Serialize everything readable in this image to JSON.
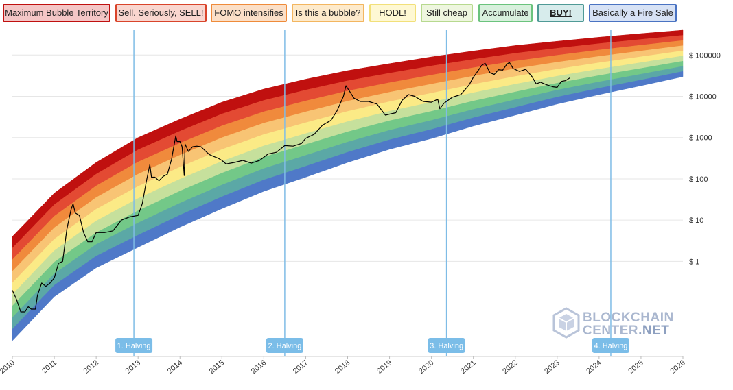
{
  "chart_data": {
    "type": "area",
    "title": "",
    "xlabel": "",
    "ylabel": "",
    "y_scale": "log",
    "xlim": [
      2010.0,
      2026.0
    ],
    "ylim": [
      0.005,
      400000
    ],
    "x_ticks": [
      2010,
      2011,
      2012,
      2013,
      2014,
      2015,
      2016,
      2017,
      2018,
      2019,
      2020,
      2021,
      2022,
      2023,
      2024,
      2025,
      2026
    ],
    "x_tick_labels": [
      "2010",
      "2011",
      "2012",
      "2013",
      "2014",
      "2015",
      "2016",
      "2017",
      "2018",
      "2019",
      "2020",
      "2021",
      "2022",
      "2023",
      "2024",
      "2025",
      "2026"
    ],
    "y_ticks": [
      1,
      10,
      100,
      1000,
      10000,
      100000
    ],
    "y_tick_labels": [
      "$ 1",
      "$ 10",
      "$ 100",
      "$ 1000",
      "$ 10000",
      "$ 100000"
    ],
    "grid": true,
    "legend_position": "top",
    "bands": [
      {
        "name": "Maximum Bubble Territory",
        "fill": "#c0100f",
        "border": "#c0100f",
        "bg": "#f4c6c6"
      },
      {
        "name": "Sell. Seriously, SELL!",
        "fill": "#e34a33",
        "border": "#d9442b",
        "bg": "#f9d6cf"
      },
      {
        "name": "FOMO intensifies",
        "fill": "#f08a3c",
        "border": "#ef8b3a",
        "bg": "#fbdfc7"
      },
      {
        "name": "Is this a bubble?",
        "fill": "#f8c474",
        "border": "#f3b660",
        "bg": "#fdeacb"
      },
      {
        "name": "HODL!",
        "fill": "#fbea86",
        "border": "#f2e07a",
        "bg": "#fef8d3"
      },
      {
        "name": "Still cheap",
        "fill": "#c6e09c",
        "border": "#b7d98f",
        "bg": "#eef6df"
      },
      {
        "name": "Accumulate",
        "fill": "#73c888",
        "border": "#6bc37d",
        "bg": "#d8f0dd"
      },
      {
        "name": "BUY!",
        "fill": "#5ba8a6",
        "border": "#4f9a96",
        "bg": "#d7ecec"
      },
      {
        "name": "Basically a Fire Sale",
        "fill": "#4f79c8",
        "border": "#4a73c2",
        "bg": "#d7e2f5"
      }
    ],
    "band_edges": {
      "x": [
        2010.0,
        2011.0,
        2012.0,
        2013.0,
        2014.0,
        2015.0,
        2016.0,
        2017.0,
        2018.0,
        2019.0,
        2020.0,
        2021.0,
        2022.0,
        2023.0,
        2024.0,
        2025.0,
        2026.0
      ],
      "bottom": [
        0.012,
        0.14,
        0.7,
        2.2,
        6.8,
        19,
        50,
        110,
        250,
        520,
        950,
        1900,
        3500,
        6500,
        11000,
        18000,
        30000
      ],
      "top": [
        4.0,
        45,
        250,
        1000,
        2800,
        7200,
        15000,
        26000,
        42000,
        62000,
        90000,
        125000,
        170000,
        215000,
        270000,
        330000,
        400000
      ]
    },
    "series": [
      {
        "name": "",
        "x": [
          2010.0,
          2010.1,
          2010.2,
          2010.3,
          2010.38,
          2010.45,
          2010.5,
          2010.55,
          2010.6,
          2010.7,
          2010.8,
          2010.9,
          2011.0,
          2011.1,
          2011.2,
          2011.3,
          2011.4,
          2011.45,
          2011.5,
          2011.6,
          2011.7,
          2011.8,
          2011.9,
          2012.0,
          2012.2,
          2012.4,
          2012.6,
          2012.8,
          2013.0,
          2013.1,
          2013.2,
          2013.28,
          2013.32,
          2013.4,
          2013.5,
          2013.6,
          2013.7,
          2013.8,
          2013.9,
          2013.93,
          2014.0,
          2014.05,
          2014.1,
          2014.12,
          2014.2,
          2014.3,
          2014.4,
          2014.5,
          2014.6,
          2014.7,
          2014.8,
          2014.9,
          2015.0,
          2015.1,
          2015.3,
          2015.5,
          2015.7,
          2015.9,
          2016.1,
          2016.3,
          2016.5,
          2016.7,
          2016.9,
          2017.0,
          2017.2,
          2017.4,
          2017.6,
          2017.75,
          2017.9,
          2017.96,
          2018.05,
          2018.15,
          2018.3,
          2018.5,
          2018.7,
          2018.9,
          2019.0,
          2019.15,
          2019.3,
          2019.45,
          2019.6,
          2019.8,
          2020.0,
          2020.15,
          2020.2,
          2020.3,
          2020.5,
          2020.7,
          2020.9,
          2021.0,
          2021.1,
          2021.2,
          2021.28,
          2021.4,
          2021.5,
          2021.6,
          2021.7,
          2021.8,
          2021.86,
          2021.95,
          2022.1,
          2022.25,
          2022.4,
          2022.5,
          2022.6,
          2022.75,
          2022.9,
          2023.0,
          2023.1,
          2023.2,
          2023.3
        ],
        "y": [
          0.2,
          0.12,
          0.06,
          0.06,
          0.08,
          0.07,
          0.07,
          0.07,
          0.15,
          0.3,
          0.25,
          0.3,
          0.4,
          0.9,
          1.0,
          6,
          18,
          25,
          15,
          13,
          5,
          3,
          3,
          5,
          5,
          5.5,
          10,
          12,
          13,
          25,
          90,
          220,
          110,
          110,
          90,
          115,
          130,
          300,
          1100,
          800,
          800,
          600,
          120,
          700,
          460,
          600,
          620,
          600,
          480,
          390,
          350,
          320,
          280,
          230,
          250,
          280,
          240,
          280,
          400,
          440,
          640,
          620,
          720,
          960,
          1200,
          2000,
          2600,
          4500,
          10000,
          18000,
          13000,
          9000,
          7500,
          7500,
          6500,
          3500,
          3700,
          4000,
          8000,
          11000,
          10000,
          7500,
          7200,
          8500,
          5000,
          6800,
          9500,
          11000,
          19000,
          29000,
          40000,
          56000,
          63000,
          37000,
          34000,
          44000,
          43000,
          60000,
          66000,
          47000,
          40000,
          45000,
          30000,
          20000,
          22000,
          19000,
          17000,
          16500,
          23000,
          24000,
          28000
        ]
      }
    ],
    "annotations": [
      {
        "label": "1. Halving",
        "x": 2012.9
      },
      {
        "label": "2. Halving",
        "x": 2016.5
      },
      {
        "label": "3. Halving",
        "x": 2020.36
      },
      {
        "label": "4. Halving",
        "x": 2024.28
      }
    ],
    "halving_line_color": "#7fbce6",
    "halving_label_bg": "#7bbde8"
  },
  "watermark": {
    "line1": "BLOCKCHAIN",
    "line2_a": "CENTER",
    "line2_b": ".NET"
  }
}
